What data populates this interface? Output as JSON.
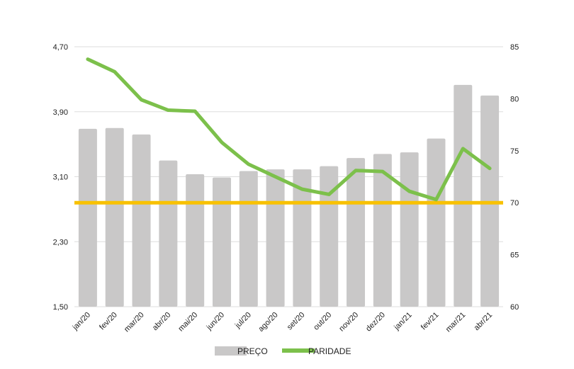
{
  "chart_data": {
    "type": "bar",
    "categories": [
      "jan/20",
      "fev/20",
      "mar/20",
      "abr/20",
      "mai/20",
      "jun/20",
      "jul/20",
      "ago/20",
      "set/20",
      "out/20",
      "nov/20",
      "dez/20",
      "jan/21",
      "fev/21",
      "mar/21",
      "abr/21"
    ],
    "series": [
      {
        "name": "PREÇO",
        "type": "bar",
        "axis": "left",
        "color": "#c9c8c8",
        "values": [
          3.69,
          3.7,
          3.62,
          3.3,
          3.13,
          3.09,
          3.17,
          3.19,
          3.19,
          3.23,
          3.33,
          3.38,
          3.4,
          3.57,
          4.23,
          4.1
        ]
      },
      {
        "name": "PARIDADE",
        "type": "line",
        "axis": "right",
        "color": "#7cc04b",
        "values": [
          83.8,
          82.6,
          79.9,
          78.9,
          78.8,
          75.8,
          73.7,
          72.5,
          71.3,
          70.8,
          73.1,
          73.0,
          71.1,
          70.3,
          75.2,
          73.3
        ]
      }
    ],
    "reference_line": {
      "axis": "right",
      "value": 70,
      "color": "#f8c100"
    },
    "y_left": {
      "min": 1.5,
      "max": 4.7,
      "ticks": [
        "1,50",
        "2,30",
        "3,10",
        "3,90",
        "4,70"
      ],
      "tick_values": [
        1.5,
        2.3,
        3.1,
        3.9,
        4.7
      ]
    },
    "y_right": {
      "min": 60,
      "max": 85,
      "ticks": [
        "60",
        "65",
        "70",
        "75",
        "80",
        "85"
      ],
      "tick_values": [
        60,
        65,
        70,
        75,
        80,
        85
      ]
    },
    "grid": true,
    "legend": {
      "position": "bottom",
      "items": [
        "PREÇO",
        "PARIDADE"
      ]
    },
    "title": "",
    "xlabel": "",
    "ylabel": ""
  }
}
